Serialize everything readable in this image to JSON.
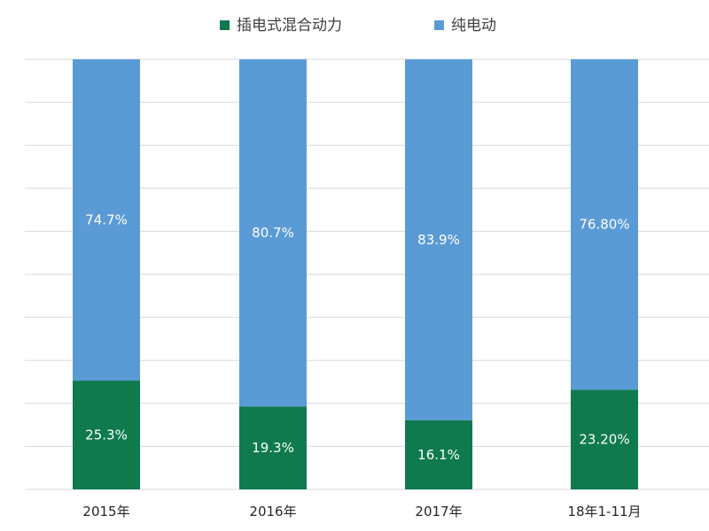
{
  "chart_data": {
    "type": "bar",
    "stacked": true,
    "percent_stacked": true,
    "categories": [
      "2015年",
      "2016年",
      "2017年",
      "18年1-11月"
    ],
    "series": [
      {
        "name": "插电式混合动力",
        "color": "#0e7a4e",
        "values": [
          25.3,
          19.3,
          16.1,
          23.2
        ],
        "labels": [
          "25.3%",
          "19.3%",
          "16.1%",
          "23.20%"
        ]
      },
      {
        "name": "纯电动",
        "color": "#5b9bd5",
        "values": [
          74.7,
          80.7,
          83.9,
          76.8
        ],
        "labels": [
          "74.7%",
          "80.7%",
          "83.9%",
          "76.80%"
        ]
      }
    ],
    "ylim": [
      0,
      100
    ],
    "grid": true,
    "legend_position": "top-center"
  }
}
